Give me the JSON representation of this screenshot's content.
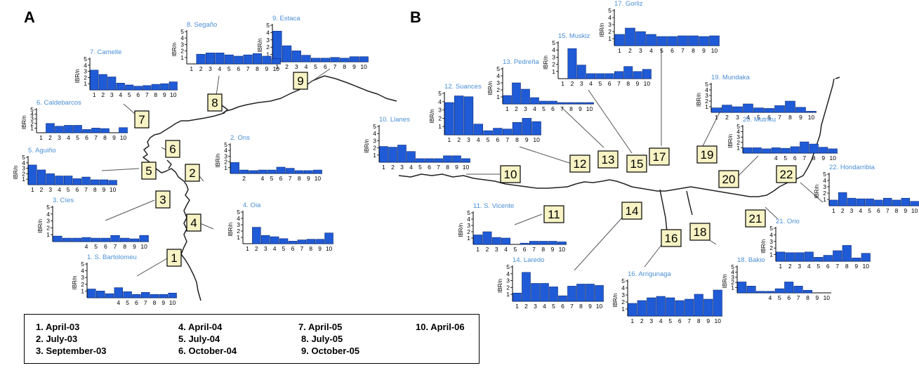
{
  "panels": [
    {
      "letter": "A"
    },
    {
      "letter": "B"
    }
  ],
  "axis_label": "IBR/n",
  "colors": {
    "bar": "#1f5bd6",
    "bar_edge": "#0a2a7a",
    "title": "#4a8fd6",
    "coast": "#222222",
    "marker_fill": "#f7f3c4"
  },
  "legend": {
    "items": [
      {
        "label": "1. April-03"
      },
      {
        "label": "2. July-03"
      },
      {
        "label": "3. September-03"
      },
      {
        "label": "4. April-04"
      },
      {
        "label": "5. July-04"
      },
      {
        "label": "6. October-04"
      },
      {
        "label": "7. April-05"
      },
      {
        "label": "8. July-05"
      },
      {
        "label": "9. October-05"
      },
      {
        "label": "10. April-06"
      }
    ]
  },
  "markers": [
    "1",
    "2",
    "3",
    "4",
    "5",
    "6",
    "7",
    "8",
    "9",
    "10",
    "11",
    "12",
    "13",
    "14",
    "15",
    "16",
    "17",
    "18",
    "19",
    "20",
    "21",
    "22"
  ],
  "chart_data": [
    {
      "type": "bar",
      "panel": "A",
      "title": "9. Estaca",
      "ylabel": "IBR/n",
      "ylim": [
        0,
        5
      ],
      "x": [
        1,
        2,
        3,
        4,
        5,
        6,
        7,
        8,
        9,
        10
      ],
      "values": [
        4.2,
        2.2,
        1.5,
        0.9,
        0.5,
        0.5,
        0.6,
        0.5,
        0.7,
        0.7
      ]
    },
    {
      "type": "bar",
      "panel": "A",
      "title": "8. Segaño",
      "ylabel": "IBR/n",
      "ylim": [
        0,
        5
      ],
      "x": [
        1,
        2,
        3,
        4,
        5,
        6,
        7,
        8,
        9,
        10
      ],
      "values": [
        0,
        1.5,
        1.7,
        1.7,
        1.4,
        1.2,
        1.4,
        1.6,
        1.2,
        0.8
      ]
    },
    {
      "type": "bar",
      "panel": "A",
      "title": "7. Camelle",
      "ylabel": "IBR/n",
      "ylim": [
        0,
        5
      ],
      "x": [
        1,
        2,
        3,
        4,
        5,
        6,
        7,
        8,
        9,
        10
      ],
      "values": [
        3.2,
        2.5,
        2.1,
        1.1,
        0.8,
        0.6,
        0.7,
        0.9,
        1.0,
        1.3
      ]
    },
    {
      "type": "bar",
      "panel": "A",
      "title": "6. Caldebarcos",
      "ylabel": "IBR/n",
      "ylim": [
        0,
        5
      ],
      "x": [
        1,
        2,
        3,
        4,
        5,
        6,
        7,
        8,
        9,
        10
      ],
      "values": [
        0,
        2.0,
        1.4,
        1.6,
        1.6,
        0.7,
        1.0,
        0.9,
        0,
        1.1
      ]
    },
    {
      "type": "bar",
      "panel": "A",
      "title": "5. Aguiño",
      "ylabel": "IBR/n",
      "ylim": [
        0,
        5
      ],
      "x": [
        1,
        2,
        3,
        4,
        5,
        6,
        7,
        8,
        9,
        10
      ],
      "values": [
        3.6,
        2.7,
        2.0,
        1.6,
        1.6,
        1.1,
        1.4,
        0.9,
        0.9,
        0.8
      ]
    },
    {
      "type": "bar",
      "panel": "A",
      "title": "2. Ons",
      "ylabel": "IBR/n",
      "ylim": [
        0,
        5
      ],
      "x": [
        null,
        2,
        null,
        4,
        5,
        6,
        7,
        8,
        9,
        10
      ],
      "values": [
        1.9,
        0.6,
        0.5,
        0.6,
        0.6,
        1.1,
        0.9,
        0.5,
        0.5,
        0.6
      ]
    },
    {
      "type": "bar",
      "panel": "A",
      "title": "3. Cíes",
      "ylabel": "IBR/n",
      "ylim": [
        0,
        5
      ],
      "x": [
        null,
        null,
        null,
        4,
        5,
        6,
        7,
        8,
        9,
        10
      ],
      "values": [
        0.8,
        0.5,
        0.5,
        0.6,
        0.5,
        0.5,
        0.9,
        0.5,
        0.4,
        0.9
      ]
    },
    {
      "type": "bar",
      "panel": "A",
      "title": "4. Oia",
      "ylabel": "IBR/n",
      "ylim": [
        0,
        5
      ],
      "x": [
        1,
        2,
        3,
        4,
        5,
        6,
        7,
        8,
        9,
        10
      ],
      "values": [
        0,
        2.6,
        1.3,
        1.1,
        0.8,
        0.4,
        0.6,
        0.7,
        0.7,
        1.7
      ]
    },
    {
      "type": "bar",
      "panel": "A",
      "title": "1. S. Bartolomeu",
      "ylabel": "IBR/n",
      "ylim": [
        0,
        5
      ],
      "x": [
        null,
        null,
        null,
        4,
        5,
        6,
        7,
        8,
        9,
        10
      ],
      "values": [
        1.3,
        1.0,
        0.6,
        1.5,
        0.9,
        0.5,
        0.8,
        0.5,
        0.5,
        0.7
      ]
    },
    {
      "type": "bar",
      "panel": "B",
      "title": "17. Gorliz",
      "ylabel": "IBR/n",
      "ylim": [
        0,
        5
      ],
      "x": [
        1,
        2,
        3,
        4,
        5,
        6,
        7,
        8,
        9,
        10
      ],
      "values": [
        1.6,
        2.5,
        2.0,
        1.6,
        1.3,
        1.3,
        1.4,
        1.4,
        1.3,
        1.4
      ]
    },
    {
      "type": "bar",
      "panel": "B",
      "title": "15. Muskiz",
      "ylabel": "IBR/n",
      "ylim": [
        0,
        5
      ],
      "x": [
        1,
        2,
        3,
        4,
        5,
        6,
        7,
        8,
        9,
        10
      ],
      "values": [
        0,
        4.2,
        1.9,
        0.7,
        0.7,
        0.7,
        1.0,
        1.7,
        1.0,
        1.3
      ]
    },
    {
      "type": "bar",
      "panel": "B",
      "title": "13. Pedreña",
      "ylabel": "IBR/n",
      "ylim": [
        0,
        5
      ],
      "x": [
        1,
        2,
        3,
        4,
        5,
        6,
        7,
        8,
        9,
        10
      ],
      "values": [
        1.2,
        3.0,
        2.1,
        0.9,
        0.4,
        0.4,
        0.2,
        0.2,
        0.2,
        0.2
      ]
    },
    {
      "type": "bar",
      "panel": "B",
      "title": "19. Mundaka",
      "ylabel": "IBR/n",
      "ylim": [
        0,
        5
      ],
      "x": [
        1,
        2,
        3,
        4,
        5,
        6,
        7,
        8,
        9,
        10
      ],
      "values": [
        0.8,
        1.3,
        1.0,
        1.5,
        0.8,
        0.7,
        1.2,
        2.0,
        0.9,
        0.2
      ]
    },
    {
      "type": "bar",
      "panel": "B",
      "title": "12. Suances",
      "ylabel": "IBR/n",
      "ylim": [
        0,
        5
      ],
      "x": [
        1,
        2,
        3,
        4,
        5,
        6,
        7,
        8,
        9,
        10
      ],
      "values": [
        3.9,
        4.7,
        4.6,
        1.3,
        0.5,
        0.8,
        0.7,
        1.5,
        2.0,
        1.6
      ]
    },
    {
      "type": "bar",
      "panel": "B",
      "title": "20. Mutriku",
      "ylabel": "IBR/n",
      "ylim": [
        0,
        5
      ],
      "x": [
        null,
        null,
        null,
        4,
        5,
        6,
        7,
        8,
        9,
        10
      ],
      "values": [
        1.0,
        1.0,
        0.8,
        1.0,
        0.9,
        1.2,
        2.1,
        1.7,
        1.1,
        0.8
      ]
    },
    {
      "type": "bar",
      "panel": "B",
      "title": "10. Llanes",
      "ylabel": "IBR/n",
      "ylim": [
        0,
        5
      ],
      "x": [
        1,
        2,
        3,
        4,
        5,
        6,
        7,
        8,
        9,
        10
      ],
      "values": [
        2.2,
        2.1,
        2.4,
        1.5,
        0.5,
        0.5,
        0.5,
        0.9,
        0.9,
        0.5
      ]
    },
    {
      "type": "bar",
      "panel": "B",
      "title": "22. Hondarribia",
      "ylabel": "IBR/n",
      "ylim": [
        0,
        5
      ],
      "x": [
        1,
        2,
        3,
        4,
        5,
        6,
        7,
        8,
        9,
        10
      ],
      "values": [
        0.9,
        2.1,
        1.2,
        1.1,
        1.1,
        0.9,
        1.2,
        0.9,
        1.2,
        0.7
      ]
    },
    {
      "type": "bar",
      "panel": "B",
      "title": "11. S. Vicente",
      "ylabel": "IBR/n",
      "ylim": [
        0,
        5
      ],
      "x": [
        1,
        2,
        3,
        4,
        5,
        6,
        7,
        8,
        9,
        10
      ],
      "values": [
        1.5,
        2.0,
        1.1,
        1.0,
        0,
        0.2,
        0.5,
        0.5,
        0.5,
        0.4
      ]
    },
    {
      "type": "bar",
      "panel": "B",
      "title": "21. Orio",
      "ylabel": "IBR/n",
      "ylim": [
        0,
        5
      ],
      "x": [
        1,
        2,
        3,
        4,
        5,
        6,
        7,
        8,
        9,
        10
      ],
      "values": [
        1.4,
        1.3,
        1.3,
        1.4,
        0.6,
        0.9,
        1.6,
        2.4,
        0.5,
        1.2
      ]
    },
    {
      "type": "bar",
      "panel": "B",
      "title": "14. Laredo",
      "ylabel": "IBR/n",
      "ylim": [
        0,
        5
      ],
      "x": [
        1,
        2,
        3,
        4,
        5,
        6,
        7,
        8,
        9,
        10
      ],
      "values": [
        1.2,
        4.2,
        2.6,
        2.6,
        2.1,
        0.8,
        2.2,
        2.5,
        2.5,
        2.3
      ]
    },
    {
      "type": "bar",
      "panel": "B",
      "title": "16. Arrigunaga",
      "ylabel": "IBR/n",
      "ylim": [
        0,
        5
      ],
      "x": [
        1,
        2,
        3,
        4,
        5,
        6,
        7,
        8,
        9,
        10
      ],
      "values": [
        1.8,
        2.2,
        2.6,
        2.8,
        2.6,
        2.2,
        2.4,
        3.1,
        2.4,
        3.7
      ]
    },
    {
      "type": "bar",
      "panel": "B",
      "title": "18. Bakio",
      "ylabel": "IBR/n",
      "ylim": [
        0,
        5
      ],
      "x": [
        null,
        null,
        null,
        4,
        5,
        6,
        7,
        8,
        9,
        10
      ],
      "values": [
        2.1,
        1.3,
        0.3,
        0.3,
        0.8,
        2.1,
        1.3,
        0.5,
        0,
        0
      ]
    }
  ]
}
